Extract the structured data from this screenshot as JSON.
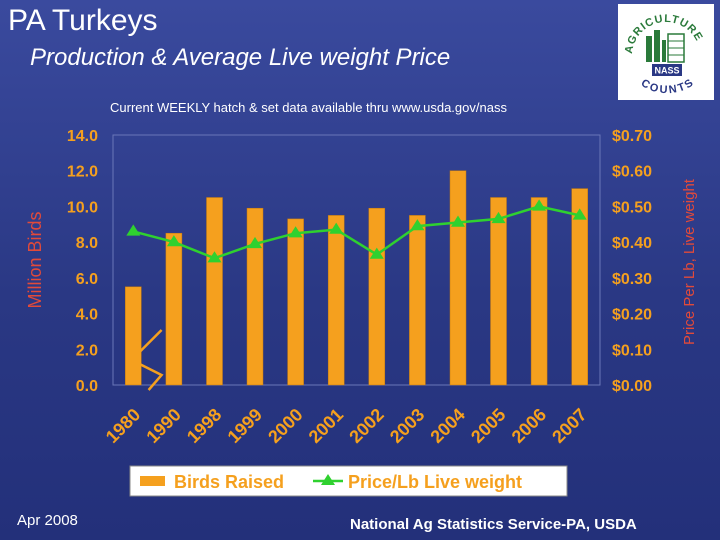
{
  "header": {
    "title": "PA Turkeys",
    "subtitle": "Production & Average Live weight Price",
    "note": "Current WEEKLY hatch & set data available thru www.usda.gov/nass"
  },
  "logo": {
    "top_text": "AGRICULTURE",
    "badge_text": "NASS",
    "bottom_text": "COUNTS"
  },
  "footer": {
    "date": "Apr 2008",
    "source": "National Ag Statistics Service-PA, USDA"
  },
  "colors": {
    "background": "#2a3884",
    "bar": "#f5a01e",
    "line": "#2fd12f",
    "axis_text": "#f5a01e",
    "label_text": "#e24a3a",
    "legend_bg": "#ffffff"
  },
  "chart_data": {
    "type": "bar",
    "categories": [
      "1980",
      "1990",
      "1998",
      "1999",
      "2000",
      "2001",
      "2002",
      "2003",
      "2004",
      "2005",
      "2006",
      "2007"
    ],
    "series": [
      {
        "name": "Birds Raised",
        "type": "bar",
        "axis": "left",
        "values": [
          5.5,
          8.5,
          10.5,
          9.9,
          9.3,
          9.5,
          9.9,
          9.5,
          12.0,
          10.5,
          10.5,
          11.0
        ]
      },
      {
        "name": "Price/Lb Live weight",
        "type": "line",
        "axis": "right",
        "values": [
          0.43,
          0.4,
          0.355,
          0.395,
          0.425,
          0.435,
          0.365,
          0.445,
          0.455,
          0.465,
          0.5,
          0.475
        ]
      }
    ],
    "ylabel": "Million Birds",
    "y2label": "Price Per Lb, Live weight",
    "ylim": [
      0,
      14
    ],
    "y2lim": [
      0,
      0.7
    ],
    "yticks": [
      "0.0",
      "2.0",
      "4.0",
      "6.0",
      "8.0",
      "10.0",
      "12.0",
      "14.0"
    ],
    "y2ticks": [
      "$0.00",
      "$0.10",
      "$0.20",
      "$0.30",
      "$0.40",
      "$0.50",
      "$0.60",
      "$0.70"
    ],
    "axis_break": "between 1980 and 1990",
    "legend": {
      "position": "bottom",
      "bar_label": "Birds Raised",
      "line_label": "Price/Lb Live weight"
    }
  }
}
